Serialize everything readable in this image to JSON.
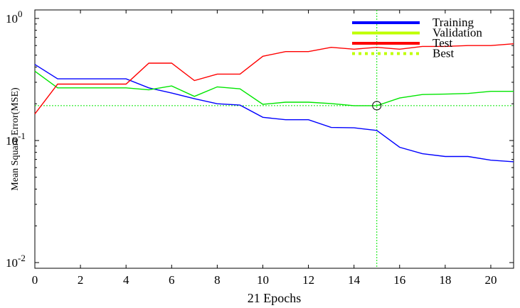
{
  "chart_data": {
    "type": "line",
    "xlabel": "21 Epochs",
    "ylabel": "Mean Square Error(MSE)",
    "xlim": [
      0,
      21
    ],
    "ylim": [
      0.01,
      1
    ],
    "yscale": "log",
    "xticks": [
      0,
      2,
      4,
      6,
      8,
      10,
      12,
      14,
      16,
      18,
      20
    ],
    "xtick_labels": [
      "0",
      "2",
      "4",
      "6",
      "8",
      "10",
      "12",
      "14",
      "16",
      "18",
      "20"
    ],
    "yticks": [
      {
        "value": 1,
        "base": "10",
        "exp": "0"
      },
      {
        "value": 0.1,
        "base": "10",
        "exp": "-1"
      },
      {
        "value": 0.01,
        "base": "10",
        "exp": "-2"
      }
    ],
    "grid": false,
    "legend_position": "top-right",
    "series": [
      {
        "name": "Training",
        "color": "#0000ff",
        "x": [
          0,
          1,
          2,
          3,
          4,
          5,
          6,
          7,
          8,
          9,
          10,
          11,
          12,
          13,
          14,
          15,
          16,
          17,
          18,
          19,
          20,
          21
        ],
        "y": [
          0.42,
          0.32,
          0.32,
          0.32,
          0.32,
          0.27,
          0.245,
          0.22,
          0.2,
          0.195,
          0.155,
          0.148,
          0.148,
          0.128,
          0.127,
          0.121,
          0.088,
          0.078,
          0.074,
          0.074,
          0.069,
          0.067
        ]
      },
      {
        "name": "Validation",
        "color": "#00e600",
        "x": [
          0,
          1,
          2,
          3,
          4,
          5,
          6,
          7,
          8,
          9,
          10,
          11,
          12,
          13,
          14,
          15,
          16,
          17,
          18,
          19,
          20,
          21
        ],
        "y": [
          0.37,
          0.27,
          0.27,
          0.27,
          0.27,
          0.26,
          0.28,
          0.23,
          0.275,
          0.265,
          0.198,
          0.206,
          0.206,
          0.201,
          0.193,
          0.193,
          0.223,
          0.238,
          0.24,
          0.243,
          0.253,
          0.253
        ]
      },
      {
        "name": "Test",
        "color": "#ff0000",
        "x": [
          0,
          1,
          2,
          3,
          4,
          5,
          6,
          7,
          8,
          9,
          10,
          11,
          12,
          13,
          14,
          15,
          16,
          17,
          18,
          19,
          20,
          21
        ],
        "y": [
          0.165,
          0.29,
          0.29,
          0.29,
          0.29,
          0.43,
          0.43,
          0.31,
          0.35,
          0.35,
          0.49,
          0.535,
          0.535,
          0.58,
          0.56,
          0.58,
          0.56,
          0.59,
          0.59,
          0.6,
          0.6,
          0.62
        ]
      }
    ],
    "best": {
      "name": "Best",
      "epoch": 15,
      "value": 0.193,
      "color": "#00e600"
    }
  },
  "legend": {
    "training_color": "#0000ff",
    "validation_color": "#bfff00",
    "test_color": "#ff0000",
    "best_color": "#bfff00"
  }
}
